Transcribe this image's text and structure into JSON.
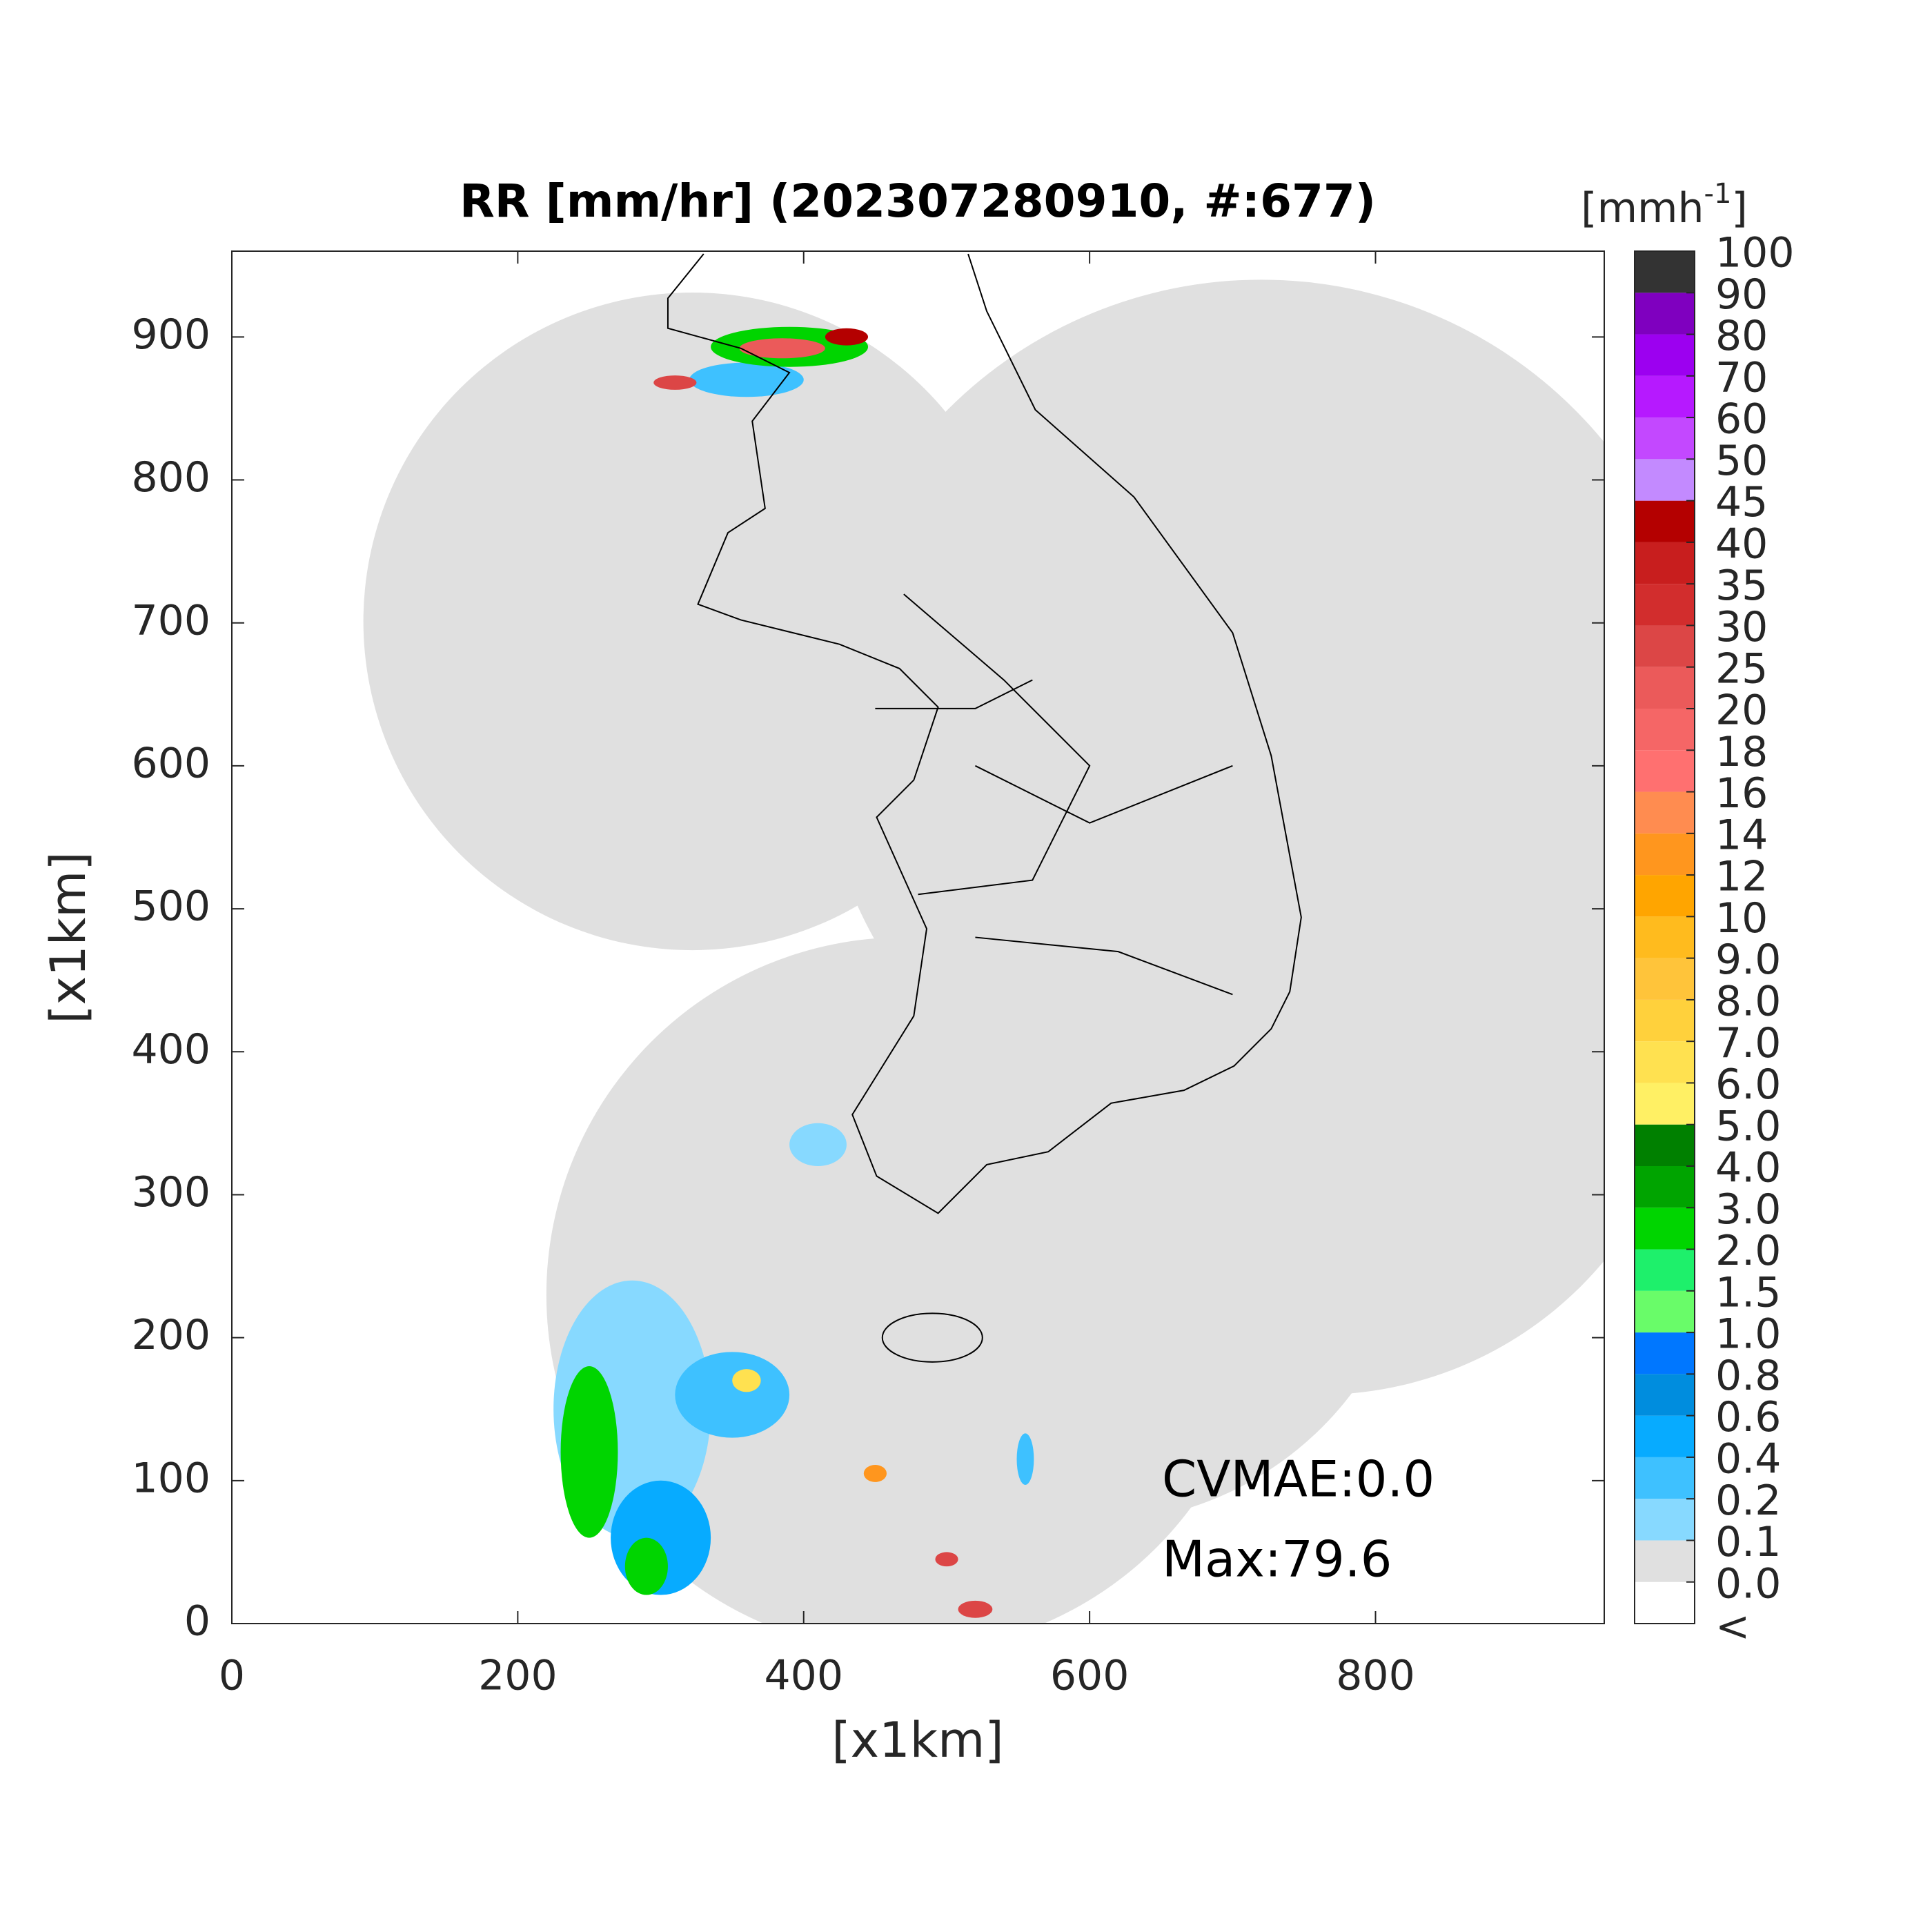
{
  "chart_data": {
    "type": "map",
    "title": "RR [mm/hr] (202307280910, #:677)",
    "x_label": "[x1km]",
    "y_label": "[x1km]",
    "xlim": [
      0,
      960
    ],
    "ylim": [
      0,
      960
    ],
    "xticks": [
      0,
      200,
      400,
      600,
      800
    ],
    "yticks": [
      0,
      100,
      200,
      300,
      400,
      500,
      600,
      700,
      800,
      900
    ],
    "annotations": [
      "CVMAE:0.0",
      "Max:79.6"
    ],
    "colorbar": {
      "unit": {
        "base": "[mmh",
        "exponent": "-1",
        "close": "]"
      },
      "below_label": "<",
      "levels": [
        {
          "value": 0,
          "label": "0.0"
        },
        0.1,
        0.2,
        0.4,
        0.6,
        0.8,
        {
          "value": 1,
          "label": "1.0"
        },
        1.5,
        {
          "value": 2,
          "label": "2.0"
        },
        {
          "value": 3,
          "label": "3.0"
        },
        {
          "value": 4,
          "label": "4.0"
        },
        {
          "value": 5,
          "label": "5.0"
        },
        {
          "value": 6,
          "label": "6.0"
        },
        {
          "value": 7,
          "label": "7.0"
        },
        {
          "value": 8,
          "label": "8.0"
        },
        {
          "value": 9,
          "label": "9.0"
        },
        10,
        12,
        14,
        16,
        18,
        20,
        25,
        30,
        35,
        40,
        45,
        50,
        60,
        70,
        80,
        90,
        100
      ],
      "colors": [
        "#ffffff",
        "#e0e0e0",
        "#87d9ff",
        "#3ec1ff",
        "#07abff",
        "#008dde",
        "#0077ff",
        "#69fc69",
        "#1ef06b",
        "#00d500",
        "#00a400",
        "#008000",
        "#fff064",
        "#ffe150",
        "#ffd13c",
        "#ffc43a",
        "#ffbb1e",
        "#ffa500",
        "#ff961e",
        "#ff8c50",
        "#ff7070",
        "#f56666",
        "#eb5a5a",
        "#dc4646",
        "#d22d2d",
        "#c81e1e",
        "#b40000",
        "#c38aff",
        "#c348ff",
        "#b619ff",
        "#9c00f0",
        "#7f00bf",
        "#333333"
      ]
    }
  }
}
